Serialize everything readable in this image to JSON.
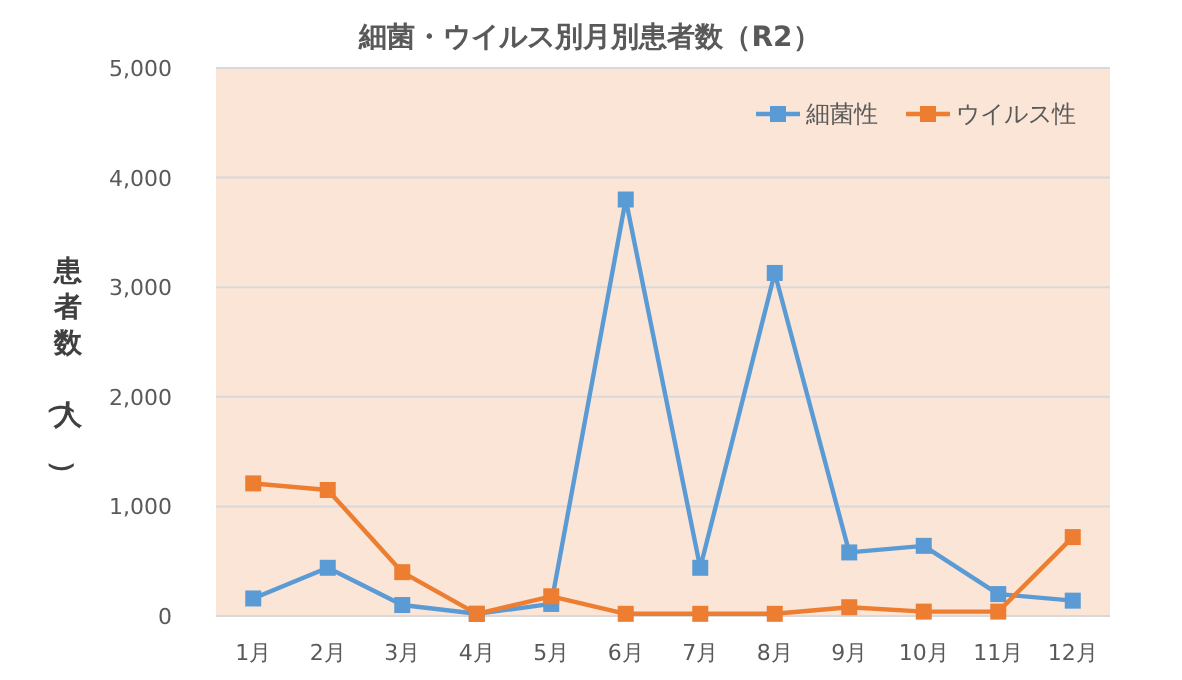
{
  "chart_data": {
    "type": "line",
    "title": "細菌・ウイルス別月別患者数（R2）",
    "ylabel": "患者数（人）",
    "categories": [
      "1月",
      "2月",
      "3月",
      "4月",
      "5月",
      "6月",
      "7月",
      "8月",
      "9月",
      "10月",
      "11月",
      "12月"
    ],
    "series": [
      {
        "name": "細菌性",
        "color": "#5b9bd5",
        "values": [
          160,
          440,
          100,
          20,
          110,
          3800,
          440,
          3130,
          580,
          640,
          200,
          140
        ]
      },
      {
        "name": "ウイルス性",
        "color": "#ed7d31",
        "values": [
          1210,
          1150,
          400,
          20,
          180,
          20,
          20,
          20,
          80,
          40,
          40,
          720
        ]
      }
    ],
    "ylim": [
      0,
      5000
    ],
    "yticks": [
      0,
      {
        "value": 1000,
        "label": "1,000"
      },
      {
        "value": 2000,
        "label": "2,000"
      },
      {
        "value": 3000,
        "label": "3,000"
      },
      {
        "value": 4000,
        "label": "4,000"
      },
      {
        "value": 5000,
        "label": "5,000"
      }
    ],
    "grid": "y",
    "legend": "top right",
    "marker": "square",
    "line_style": "solid"
  }
}
